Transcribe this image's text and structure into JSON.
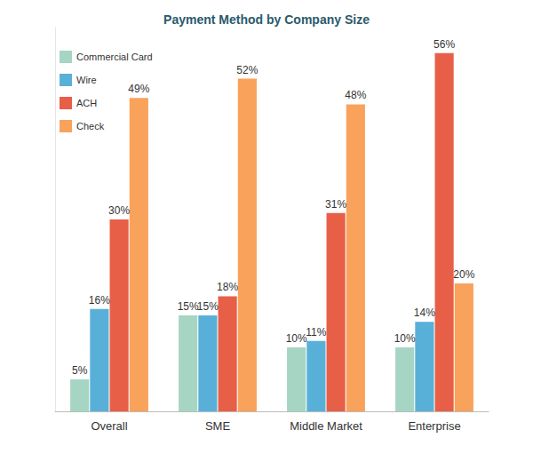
{
  "chart_data": {
    "type": "bar",
    "title": "Payment Method by Company Size",
    "categories": [
      "Overall",
      "SME",
      "Middle Market",
      "Enterprise"
    ],
    "series": [
      {
        "name": "Commercial Card",
        "color": "#a6d5c3",
        "values": [
          5,
          15,
          10,
          10
        ],
        "value_labels": [
          "5%",
          "15%",
          "10%",
          "10%"
        ]
      },
      {
        "name": "Wire",
        "color": "#58b0d9",
        "values": [
          16,
          15,
          11,
          14
        ],
        "value_labels": [
          "16%",
          "15%",
          "11%",
          "14%"
        ]
      },
      {
        "name": "ACH",
        "color": "#e85f48",
        "values": [
          30,
          18,
          31,
          56
        ],
        "value_labels": [
          "30%",
          "18%",
          "31%",
          "56%"
        ]
      },
      {
        "name": "Check",
        "color": "#f9a25c",
        "values": [
          49,
          52,
          48,
          20
        ],
        "value_labels": [
          "49%",
          "52%",
          "48%",
          "20%"
        ]
      }
    ],
    "ylim": [
      0,
      60
    ],
    "yticks": [
      0,
      60
    ],
    "grid": false,
    "legend": "upper left",
    "data_labels": true,
    "tick_labels": "x"
  }
}
